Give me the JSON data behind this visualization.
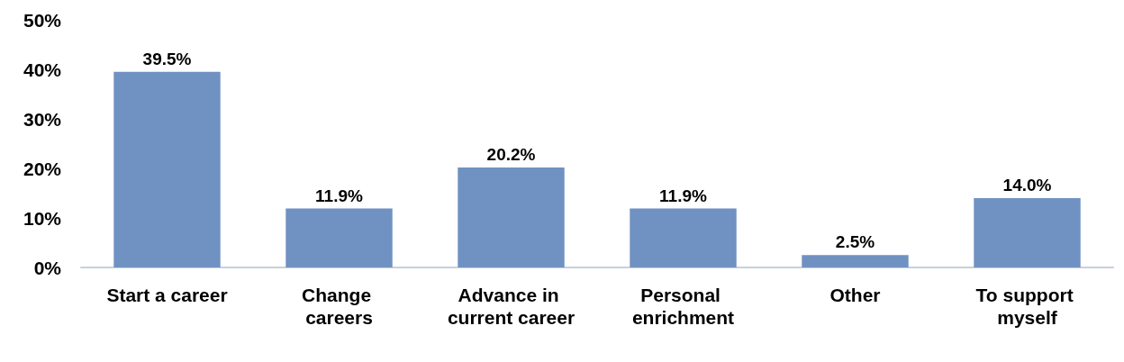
{
  "chart_data": {
    "type": "bar",
    "categories": [
      "Start a career",
      "Change careers",
      "Advance in current career",
      "Personal enrichment",
      "Other",
      "To support myself"
    ],
    "values": [
      39.5,
      11.9,
      20.2,
      11.9,
      2.5,
      14.0
    ],
    "value_labels": [
      "39.5%",
      "11.9%",
      "20.2%",
      "11.9%",
      "2.5%",
      "14.0%"
    ],
    "color": "#7092c2",
    "ylim": [
      0,
      50
    ],
    "yticks": [
      {
        "value": 0,
        "label": "0%"
      },
      {
        "value": 10,
        "label": "10%"
      },
      {
        "value": 20,
        "label": "20%"
      },
      {
        "value": 30,
        "label": "30%"
      },
      {
        "value": 40,
        "label": "40%"
      },
      {
        "value": 50,
        "label": "50%"
      }
    ],
    "grid": false
  }
}
